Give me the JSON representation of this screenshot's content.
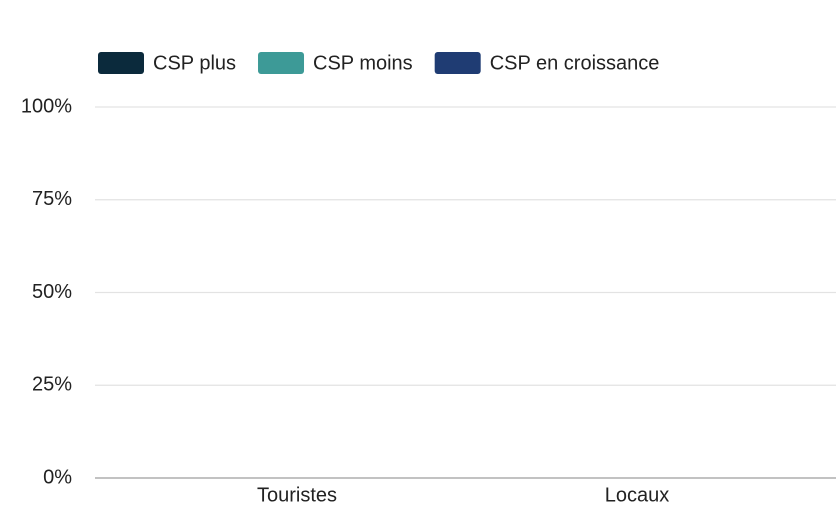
{
  "chart_data": {
    "type": "stacked-bar",
    "categories": [
      "Touristes",
      "Locaux"
    ],
    "series": [
      {
        "name": "CSP plus",
        "color": "#0b2a3c",
        "values": [
          null,
          null
        ]
      },
      {
        "name": "CSP moins",
        "color": "#3d9a97",
        "values": [
          null,
          null
        ]
      },
      {
        "name": "CSP en croissance",
        "color": "#1f3c73",
        "values": [
          null,
          null
        ]
      }
    ],
    "ylim": [
      0,
      100
    ],
    "yticks": [
      {
        "value": 0,
        "label": "0%"
      },
      {
        "value": 25,
        "label": "25%"
      },
      {
        "value": 50,
        "label": "50%"
      },
      {
        "value": 75,
        "label": "75%"
      },
      {
        "value": 100,
        "label": "100%"
      }
    ],
    "grid": true,
    "legend": "top"
  }
}
